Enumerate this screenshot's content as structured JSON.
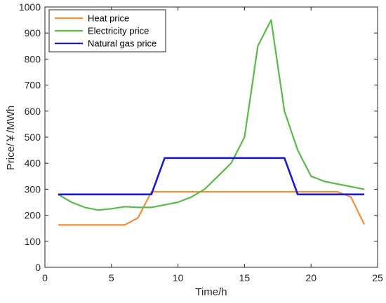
{
  "chart_data": {
    "type": "line",
    "xlabel": "Time/h",
    "ylabel": "Price/￥/MWh",
    "xlim": [
      0,
      25
    ],
    "ylim": [
      0,
      1000
    ],
    "xticks": [
      "0",
      "5",
      "10",
      "15",
      "20",
      "25"
    ],
    "yticks": [
      "0",
      "100",
      "200",
      "300",
      "400",
      "500",
      "600",
      "700",
      "800",
      "900",
      "1000"
    ],
    "grid": false,
    "legend_position": "top-left",
    "x": [
      1,
      2,
      3,
      4,
      5,
      6,
      7,
      8,
      9,
      10,
      11,
      12,
      13,
      14,
      15,
      16,
      17,
      18,
      19,
      20,
      21,
      22,
      23,
      24
    ],
    "series": [
      {
        "name": "Heat price",
        "color": "#F28E3C",
        "values": [
          163,
          163,
          163,
          163,
          163,
          163,
          190,
          290,
          290,
          290,
          290,
          290,
          290,
          290,
          290,
          290,
          290,
          290,
          290,
          290,
          290,
          290,
          270,
          165
        ]
      },
      {
        "name": "Electricity price",
        "color": "#5BB946",
        "values": [
          280,
          250,
          230,
          220,
          225,
          233,
          230,
          230,
          240,
          250,
          270,
          300,
          350,
          400,
          500,
          850,
          950,
          600,
          450,
          350,
          330,
          320,
          310,
          300
        ]
      },
      {
        "name": "Natural gas price",
        "color": "#1A1AD0",
        "values": [
          280,
          280,
          280,
          280,
          280,
          280,
          280,
          280,
          420,
          420,
          420,
          420,
          420,
          420,
          420,
          420,
          420,
          420,
          280,
          280,
          280,
          280,
          280,
          280
        ]
      }
    ]
  }
}
